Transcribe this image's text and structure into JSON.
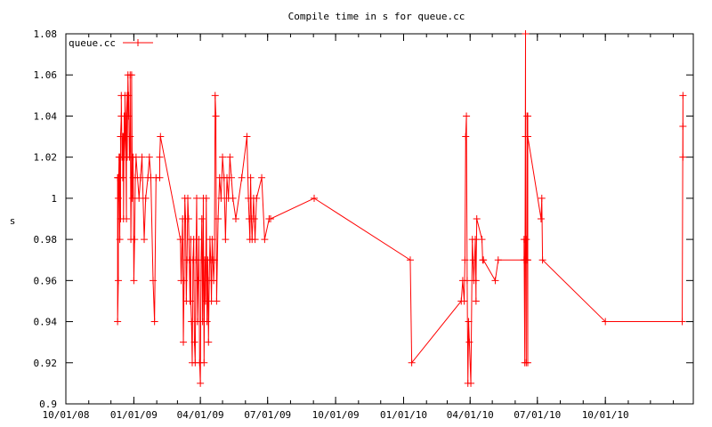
{
  "chart_data": {
    "type": "line",
    "title": "Compile time in s for queue.cc",
    "xlabel": "",
    "ylabel": "s",
    "xlim": [
      "2008-10-01",
      "2011-01-28"
    ],
    "ylim": [
      0.9,
      1.08
    ],
    "yticks": [
      0.9,
      0.92,
      0.94,
      0.96,
      0.98,
      1.0,
      1.02,
      1.04,
      1.06,
      1.08
    ],
    "ytick_labels": [
      "0.9",
      "0.92",
      "0.94",
      "0.96",
      "0.98",
      "1",
      "1.02",
      "1.04",
      "1.06",
      "1.08"
    ],
    "xticks": [
      "2008-10-01",
      "2009-01-01",
      "2009-04-01",
      "2009-07-01",
      "2009-10-01",
      "2010-01-01",
      "2010-04-01",
      "2010-07-01",
      "2010-10-01"
    ],
    "xtick_labels": [
      "10/01/08",
      "01/01/09",
      "04/01/09",
      "07/01/09",
      "10/01/09",
      "01/01/10",
      "04/01/10",
      "07/01/10",
      "10/01/10"
    ],
    "grid": false,
    "legend": "top-left",
    "color": "#ff0000",
    "series": [
      {
        "name": "queue.cc",
        "x": [
          "2008-12-10",
          "2008-12-10",
          "2008-12-11",
          "2008-12-11",
          "2008-12-11",
          "2008-12-12",
          "2008-12-12",
          "2008-12-13",
          "2008-12-13",
          "2008-12-14",
          "2008-12-14",
          "2008-12-15",
          "2008-12-15",
          "2008-12-16",
          "2008-12-17",
          "2008-12-17",
          "2008-12-18",
          "2008-12-18",
          "2008-12-19",
          "2008-12-19",
          "2008-12-20",
          "2008-12-20",
          "2008-12-21",
          "2008-12-22",
          "2008-12-22",
          "2008-12-23",
          "2008-12-23",
          "2008-12-24",
          "2008-12-25",
          "2008-12-25",
          "2008-12-26",
          "2008-12-27",
          "2008-12-27",
          "2008-12-28",
          "2008-12-29",
          "2008-12-29",
          "2008-12-30",
          "2008-12-31",
          "2008-12-31",
          "2009-01-01",
          "2009-01-02",
          "2009-01-03",
          "2009-01-04",
          "2009-01-08",
          "2009-01-10",
          "2009-01-12",
          "2009-01-15",
          "2009-01-17",
          "2009-01-20",
          "2009-01-22",
          "2009-01-24",
          "2009-01-27",
          "2009-01-29",
          "2009-01-31",
          "2009-02-05",
          "2009-02-05",
          "2009-02-06",
          "2009-03-05",
          "2009-03-06",
          "2009-03-08",
          "2009-03-09",
          "2009-03-10",
          "2009-03-11",
          "2009-03-12",
          "2009-03-13",
          "2009-03-14",
          "2009-03-15",
          "2009-03-16",
          "2009-03-17",
          "2009-03-18",
          "2009-03-19",
          "2009-03-19",
          "2009-03-20",
          "2009-03-21",
          "2009-03-22",
          "2009-03-23",
          "2009-03-24",
          "2009-03-25",
          "2009-03-26",
          "2009-03-27",
          "2009-03-28",
          "2009-03-29",
          "2009-03-30",
          "2009-03-31",
          "2009-04-01",
          "2009-04-02",
          "2009-04-03",
          "2009-04-04",
          "2009-04-05",
          "2009-04-06",
          "2009-04-07",
          "2009-04-08",
          "2009-04-09",
          "2009-04-10",
          "2009-04-11",
          "2009-04-12",
          "2009-04-13",
          "2009-04-14",
          "2009-04-15",
          "2009-04-16",
          "2009-04-17",
          "2009-04-18",
          "2009-04-19",
          "2009-04-20",
          "2009-04-21",
          "2009-04-22",
          "2009-04-23",
          "2009-04-25",
          "2009-04-27",
          "2009-04-29",
          "2009-05-01",
          "2009-05-03",
          "2009-05-05",
          "2009-05-07",
          "2009-05-09",
          "2009-05-11",
          "2009-05-13",
          "2009-05-15",
          "2009-05-19",
          "2009-05-27",
          "2009-06-03",
          "2009-06-05",
          "2009-06-06",
          "2009-06-07",
          "2009-06-08",
          "2009-06-09",
          "2009-06-10",
          "2009-06-11",
          "2009-06-12",
          "2009-06-13",
          "2009-06-14",
          "2009-06-16",
          "2009-06-23",
          "2009-06-27",
          "2009-07-03",
          "2009-07-05",
          "2009-09-02",
          "2010-01-10",
          "2010-01-12",
          "2010-03-20",
          "2010-03-22",
          "2010-03-24",
          "2010-03-25",
          "2010-03-26",
          "2010-03-27",
          "2010-03-28",
          "2010-03-29",
          "2010-03-30",
          "2010-03-31",
          "2010-04-02",
          "2010-04-04",
          "2010-04-05",
          "2010-04-06",
          "2010-04-08",
          "2010-04-09",
          "2010-04-09",
          "2010-04-10",
          "2010-04-17",
          "2010-04-18",
          "2010-04-19",
          "2010-05-05",
          "2010-05-09",
          "2010-06-13",
          "2010-06-13",
          "2010-06-14",
          "2010-06-15",
          "2010-06-15",
          "2010-06-15",
          "2010-06-16",
          "2010-06-16",
          "2010-06-17",
          "2010-06-17",
          "2010-06-18",
          "2010-06-18",
          "2010-06-18",
          "2010-06-18",
          "2010-07-06",
          "2010-07-07",
          "2010-07-08",
          "2010-10-01",
          "2011-01-13",
          "2011-01-14",
          "2011-01-14",
          "2011-01-14"
        ],
        "y": [
          1.01,
          0.94,
          0.96,
          1.01,
          1.0,
          1.02,
          1.01,
          0.98,
          1.02,
          0.99,
          1.03,
          1.04,
          1.05,
          1.02,
          1.03,
          1.01,
          1.03,
          0.99,
          1.04,
          1.02,
          1.03,
          1.05,
          1.03,
          0.99,
          1.04,
          1.05,
          1.02,
          1.06,
          1.04,
          1.05,
          1.02,
          1.03,
          1.06,
          0.98,
          1.02,
          1.06,
          1.0,
          1.01,
          1.02,
          0.96,
          0.98,
          1.01,
          1.02,
          1.0,
          1.01,
          1.02,
          0.98,
          1.0,
          1.01,
          1.02,
          1.01,
          0.96,
          0.94,
          1.01,
          1.01,
          1.02,
          1.03,
          0.98,
          0.96,
          0.99,
          0.93,
          0.96,
          1.0,
          0.99,
          0.95,
          0.97,
          1.0,
          0.99,
          0.97,
          0.95,
          0.98,
          0.95,
          0.94,
          0.92,
          0.97,
          0.98,
          0.93,
          0.92,
          0.97,
          1.0,
          0.94,
          0.96,
          0.98,
          0.92,
          0.91,
          0.97,
          0.99,
          0.94,
          1.0,
          0.92,
          0.97,
          0.95,
          1.0,
          0.94,
          0.97,
          0.93,
          0.96,
          0.98,
          0.97,
          0.95,
          0.98,
          0.97,
          0.96,
          0.97,
          1.05,
          1.04,
          0.95,
          0.99,
          1.01,
          1.0,
          1.02,
          1.01,
          0.98,
          1.01,
          1.0,
          1.02,
          1.01,
          1.0,
          0.99,
          1.01,
          1.03,
          1.0,
          0.99,
          0.98,
          1.01,
          0.99,
          0.98,
          0.99,
          1.0,
          0.99,
          0.98,
          1.0,
          1.01,
          0.98,
          0.99,
          0.99,
          1.0,
          0.97,
          0.92,
          0.95,
          0.96,
          0.95,
          0.97,
          1.03,
          1.04,
          0.96,
          0.91,
          0.94,
          0.93,
          0.91,
          0.98,
          0.97,
          0.96,
          0.98,
          0.95,
          0.96,
          0.99,
          0.98,
          0.97,
          0.97,
          0.96,
          0.97,
          0.97,
          0.98,
          0.92,
          1.08,
          0.97,
          1.03,
          0.92,
          0.98,
          0.97,
          1.04,
          0.92,
          0.97,
          1.04,
          1.03,
          0.99,
          1.0,
          0.97,
          0.94,
          0.94,
          1.05,
          1.02,
          1.035
        ]
      }
    ]
  }
}
